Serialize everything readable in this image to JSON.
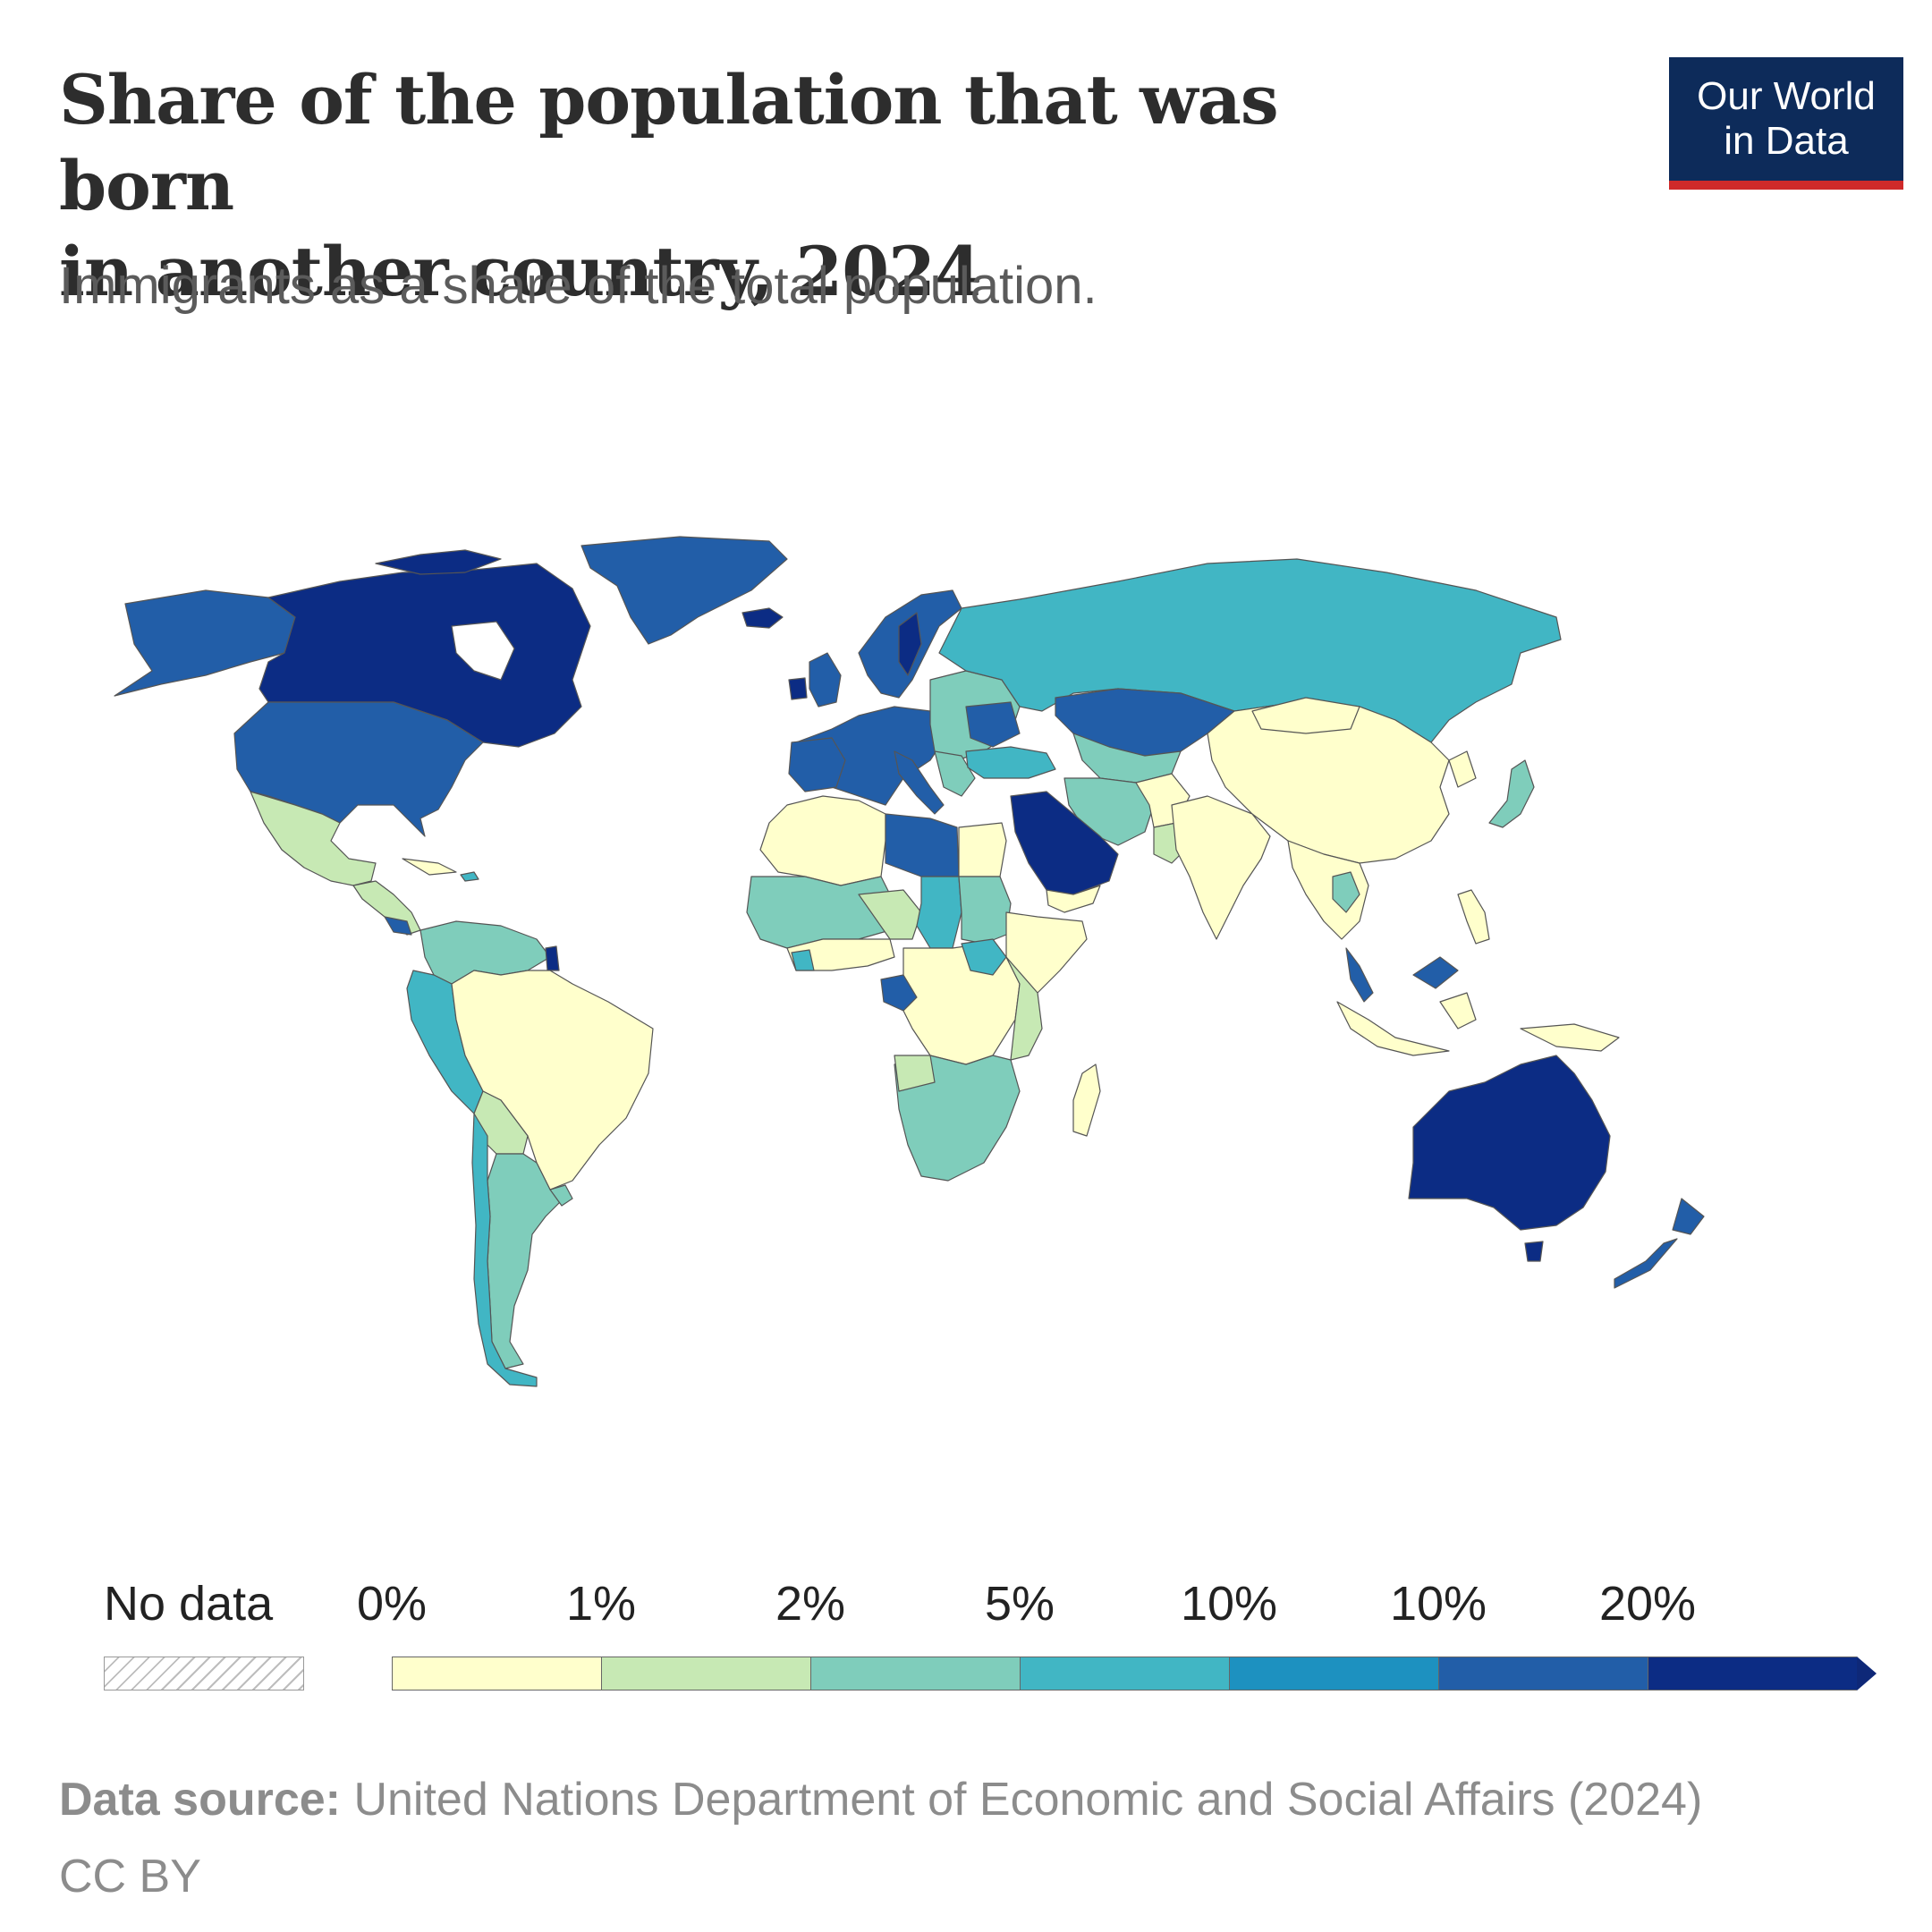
{
  "header": {
    "title_line1": "Share of the population that was born",
    "title_line2": "in another country, 2024",
    "subtitle": "Immigrants as a share of the total population."
  },
  "logo": {
    "line1": "Our World",
    "line2": "in Data",
    "bg_color": "#0d2b5a",
    "accent_color": "#cf2a2a"
  },
  "legend": {
    "no_data_label": "No data",
    "ticks": [
      "0%",
      "1%",
      "2%",
      "5%",
      "10%",
      "10%",
      "20%"
    ],
    "bin_colors": [
      "#ffffcc",
      "#c7e9b4",
      "#7fcdbb",
      "#41b6c4",
      "#1d91c0",
      "#225ea8",
      "#0c2c84"
    ]
  },
  "footer": {
    "source_label": "Data source:",
    "source_text": " United Nations Department of Economic and Social Affairs (2024)",
    "license": "CC BY"
  },
  "chart_data": {
    "type": "choropleth",
    "title": "Share of the population that was born in another country, 2024",
    "subtitle": "Immigrants as a share of the total population.",
    "scale_thresholds": [
      "0%",
      "1%",
      "2%",
      "5%",
      "10%",
      "10%",
      "20%"
    ],
    "regions": [
      {
        "name": "Canada",
        "bin": 6
      },
      {
        "name": "United States",
        "bin": 5
      },
      {
        "name": "Greenland",
        "bin": 5
      },
      {
        "name": "Alaska",
        "bin": 5
      },
      {
        "name": "Mexico",
        "bin": 1
      },
      {
        "name": "Central America",
        "bin": 1
      },
      {
        "name": "Colombia / Venezuela",
        "bin": 2
      },
      {
        "name": "Brazil",
        "bin": 0
      },
      {
        "name": "Peru / Ecuador",
        "bin": 3
      },
      {
        "name": "Bolivia",
        "bin": 1
      },
      {
        "name": "Argentina",
        "bin": 2
      },
      {
        "name": "Chile",
        "bin": 3
      },
      {
        "name": "Iceland",
        "bin": 6
      },
      {
        "name": "Scandinavia",
        "bin": 5
      },
      {
        "name": "Western Europe",
        "bin": 5
      },
      {
        "name": "Eastern Europe",
        "bin": 2
      },
      {
        "name": "Russia",
        "bin": 3
      },
      {
        "name": "Kazakhstan",
        "bin": 5
      },
      {
        "name": "Turkey",
        "bin": 3
      },
      {
        "name": "Iran / Central Asia",
        "bin": 2
      },
      {
        "name": "Saudi Arabia / Gulf",
        "bin": 6
      },
      {
        "name": "Libya",
        "bin": 5
      },
      {
        "name": "North Africa",
        "bin": 0
      },
      {
        "name": "Sahel",
        "bin": 2
      },
      {
        "name": "Chad",
        "bin": 3
      },
      {
        "name": "Gabon / Eq. Guinea",
        "bin": 5
      },
      {
        "name": "Central Africa",
        "bin": 0
      },
      {
        "name": "Southern Africa",
        "bin": 2
      },
      {
        "name": "Madagascar",
        "bin": 0
      },
      {
        "name": "China",
        "bin": 0
      },
      {
        "name": "India",
        "bin": 0
      },
      {
        "name": "Southeast Asia",
        "bin": 0
      },
      {
        "name": "Malaysia",
        "bin": 5
      },
      {
        "name": "Japan",
        "bin": 2
      },
      {
        "name": "Indonesia",
        "bin": 0
      },
      {
        "name": "Australia",
        "bin": 6
      },
      {
        "name": "New Zealand",
        "bin": 5
      }
    ]
  }
}
